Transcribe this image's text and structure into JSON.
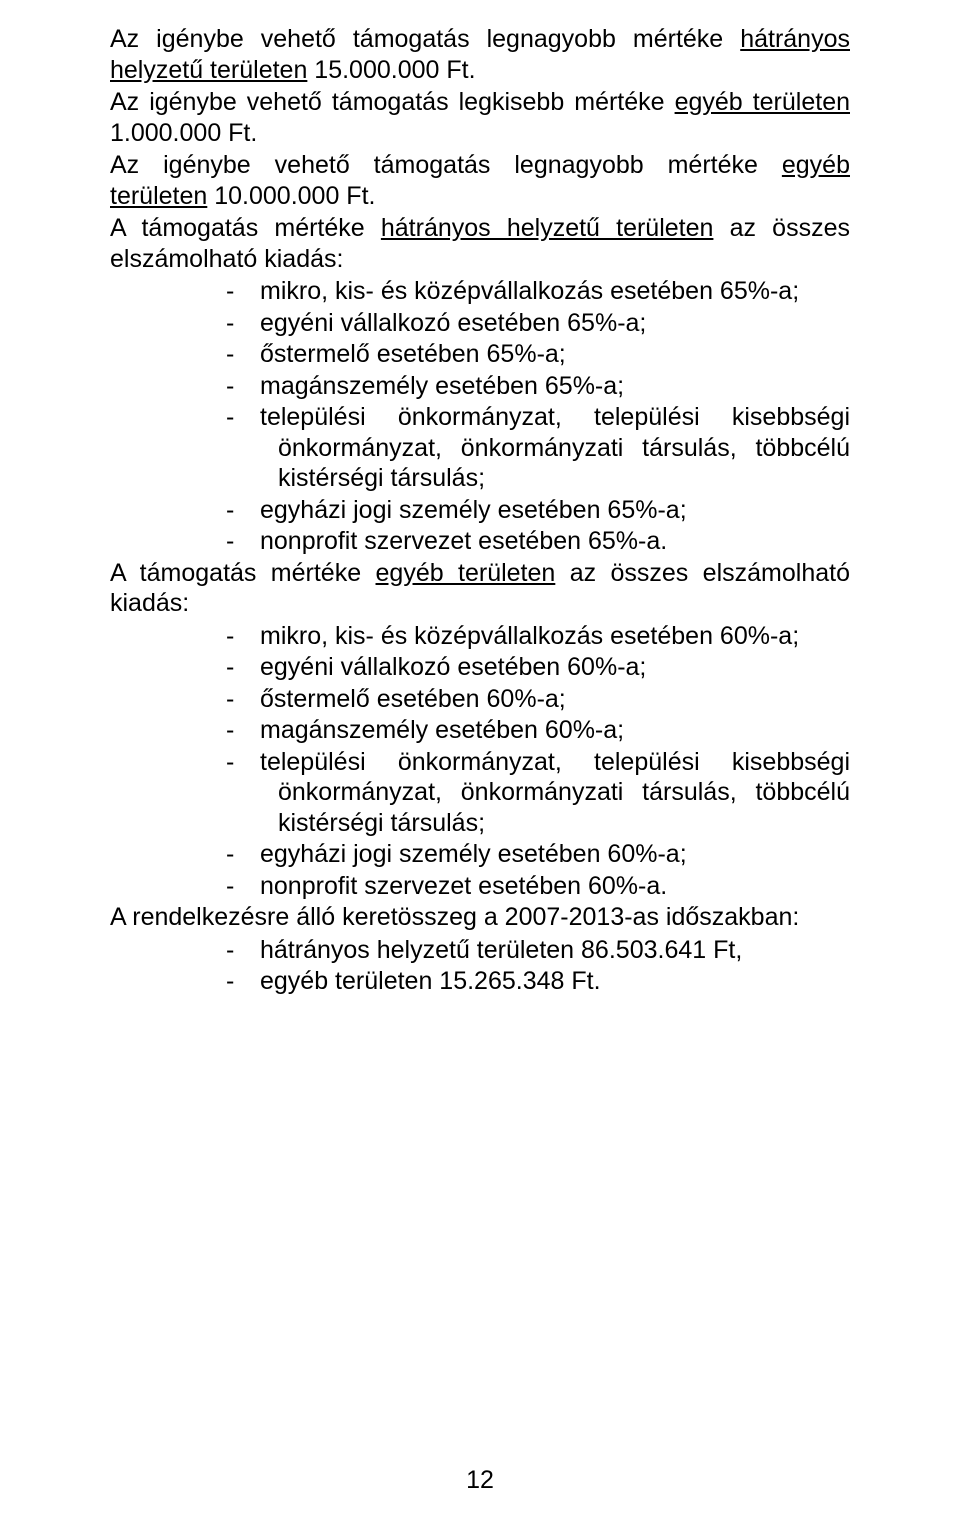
{
  "p1_pre": "Az igénybe vehető támogatás legnagyobb mértéke ",
  "p1_u": "hátrányos helyzetű területen",
  "p1_post": " 15.000.000 Ft.",
  "p2_pre": "Az igénybe vehető támogatás legkisebb mértéke ",
  "p2_u": "egyéb területen",
  "p2_post": " 1.000.000 Ft.",
  "p3_pre": "Az igénybe vehető támogatás legnagyobb mértéke ",
  "p3_u": "egyéb területen",
  "p3_post": " 10.000.000 Ft.",
  "p4_pre": "A támogatás mértéke ",
  "p4_u": "hátrányos helyzetű területen",
  "p4_post": " az összes elszámolható kiadás:",
  "list1": [
    "mikro, kis- és középvállalkozás esetében 65%-a;",
    "egyéni vállalkozó esetében 65%-a;",
    "őstermelő esetében 65%-a;",
    "magánszemély esetében 65%-a;",
    "települési önkormányzat, települési kisebbségi önkormányzat, önkormányzati társulás, többcélú kistérségi társulás;",
    "egyházi jogi személy esetében 65%-a;",
    "nonprofit szervezet esetében 65%-a."
  ],
  "p5_pre": "A támogatás mértéke ",
  "p5_u": "egyéb területen",
  "p5_post": " az összes elszámolható kiadás:",
  "list2": [
    "mikro, kis- és középvállalkozás esetében 60%-a;",
    "egyéni vállalkozó esetében 60%-a;",
    "őstermelő esetében 60%-a;",
    "magánszemély esetében 60%-a;",
    "települési önkormányzat, települési kisebbségi önkormányzat, önkormányzati társulás, többcélú kistérségi társulás;",
    "egyházi jogi személy esetében 60%-a;",
    "nonprofit szervezet esetében 60%-a."
  ],
  "p6": "A rendelkezésre álló keretösszeg a 2007-2013-as időszakban:",
  "list3": [
    "hátrányos helyzetű területen 86.503.641 Ft,",
    "egyéb területen 15.265.348 Ft."
  ],
  "dash": "-",
  "page_number": "12"
}
